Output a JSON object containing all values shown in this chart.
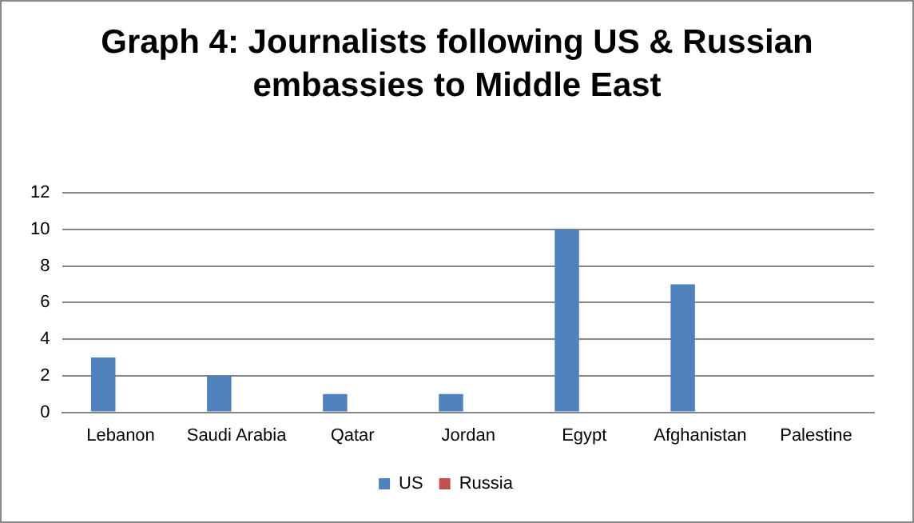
{
  "chart_data": {
    "type": "bar",
    "title": "Graph 4: Journalists following US & Russian embassies to Middle East",
    "categories": [
      "Lebanon",
      "Saudi Arabia",
      "Qatar",
      "Jordan",
      "Egypt",
      "Afghanistan",
      "Palestine"
    ],
    "series": [
      {
        "name": "US",
        "color": "#4f81bd",
        "values": [
          3,
          2,
          1,
          1,
          10,
          7,
          0
        ]
      },
      {
        "name": "Russia",
        "color": "#c0504d",
        "values": [
          0,
          0,
          0,
          0,
          0,
          0,
          0
        ]
      }
    ],
    "ylim": [
      0,
      12
    ],
    "yticks": [
      0,
      2,
      4,
      6,
      8,
      10,
      12
    ],
    "grid": "y",
    "legend": "bottom"
  }
}
